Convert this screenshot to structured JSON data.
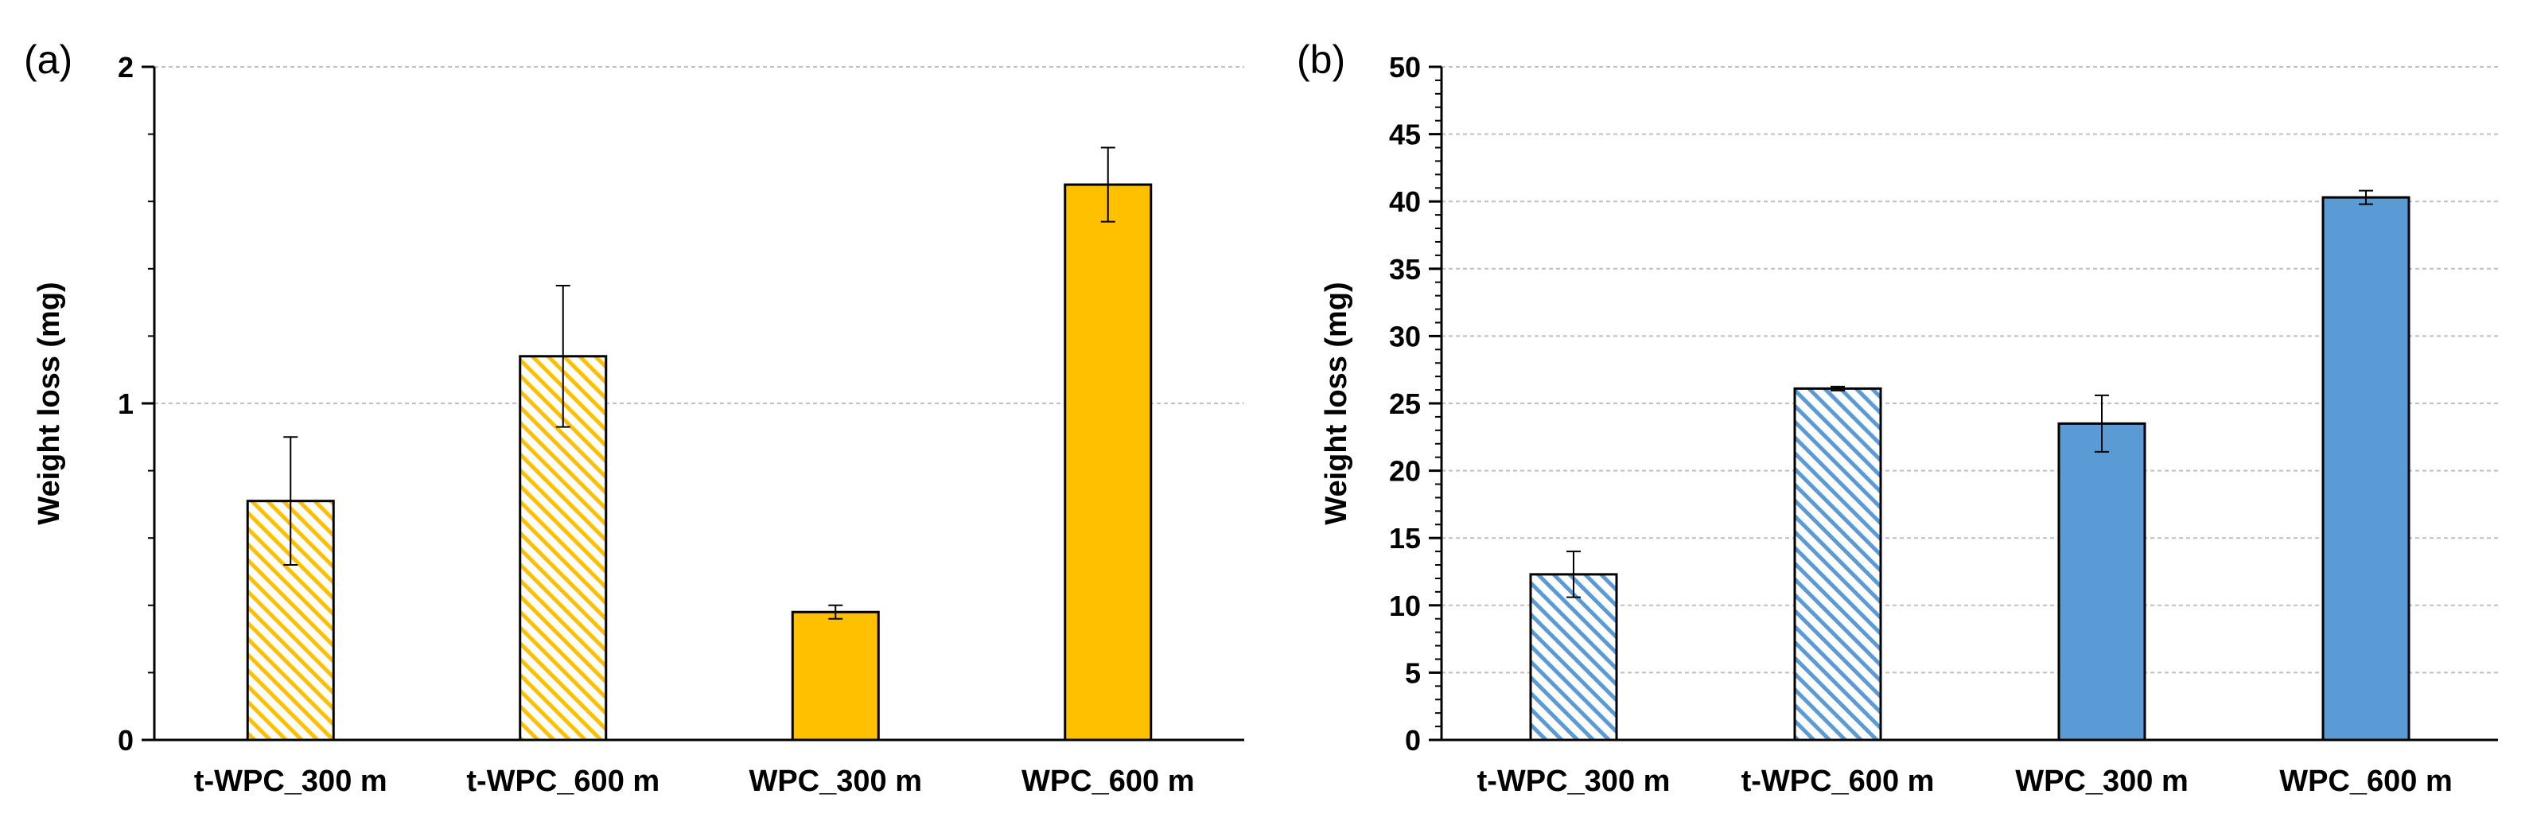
{
  "figure": {
    "panels": [
      "(a)",
      "(b)"
    ]
  },
  "chart_data": [
    {
      "panel": "(a)",
      "type": "bar",
      "title": "",
      "xlabel": "",
      "ylabel": "Weight loss (mg)",
      "ylim": [
        0,
        2
      ],
      "yticks": [
        "0",
        "1",
        "2"
      ],
      "grid": true,
      "categories": [
        "t-WPC_300 m",
        "t-WPC_600 m",
        "WPC_300 m",
        "WPC_600 m"
      ],
      "values": [
        0.71,
        1.14,
        0.38,
        1.65
      ],
      "errors": [
        0.19,
        0.21,
        0.02,
        0.11
      ],
      "fills": [
        "hatched",
        "hatched",
        "solid",
        "solid"
      ],
      "color": "#FFC000"
    },
    {
      "panel": "(b)",
      "type": "bar",
      "title": "",
      "xlabel": "",
      "ylabel": "Weight loss (mg)",
      "ylim": [
        0,
        50
      ],
      "yticks": [
        "0",
        "5",
        "10",
        "15",
        "20",
        "25",
        "30",
        "35",
        "40",
        "45",
        "50"
      ],
      "grid": true,
      "categories": [
        "t-WPC_300 m",
        "t-WPC_600 m",
        "WPC_300 m",
        "WPC_600 m"
      ],
      "values": [
        12.3,
        26.1,
        23.5,
        40.3
      ],
      "errors": [
        1.7,
        0.15,
        2.1,
        0.5
      ],
      "fills": [
        "hatched",
        "hatched",
        "solid",
        "solid"
      ],
      "color": "#5B9BD5"
    }
  ]
}
